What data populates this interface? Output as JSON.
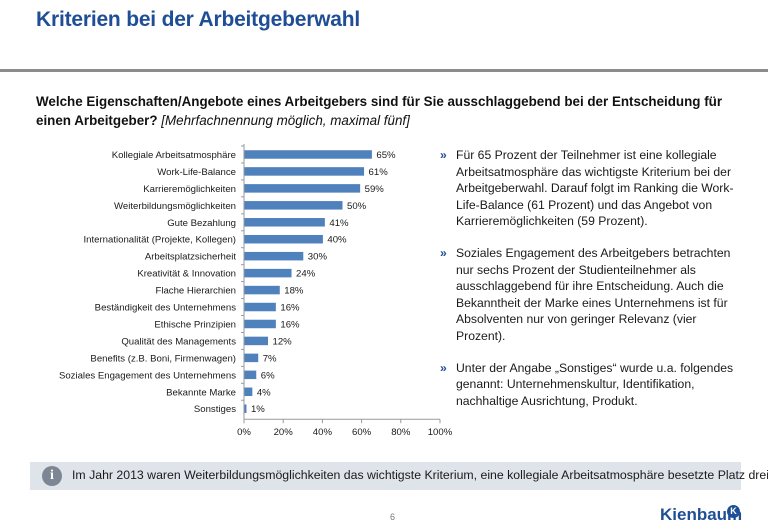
{
  "header": {
    "title": "Kriterien bei der Arbeitgeberwahl"
  },
  "question": {
    "text": "Welche Eigenschaften/Angebote eines Arbeitgebers sind für Sie ausschlaggebend bei der Entscheidung für einen Arbeitgeber?",
    "hint": "[Mehrfachnennung möglich, maximal fünf]"
  },
  "chart_data": {
    "type": "bar",
    "orientation": "horizontal",
    "categories": [
      "Kollegiale Arbeitsatmosphäre",
      "Work-Life-Balance",
      "Karrieremöglichkeiten",
      "Weiterbildungsmöglichkeiten",
      "Gute Bezahlung",
      "Internationalität (Projekte, Kollegen)",
      "Arbeitsplatzsicherheit",
      "Kreativität & Innovation",
      "Flache Hierarchien",
      "Beständigkeit des Unternehmens",
      "Ethische Prinzipien",
      "Qualität des Managements",
      "Benefits (z.B. Boni, Firmenwagen)",
      "Soziales Engagement des Unternehmens",
      "Bekannte Marke",
      "Sonstiges"
    ],
    "values": [
      65,
      61,
      59,
      50,
      41,
      40,
      30,
      24,
      18,
      16,
      16,
      12,
      7,
      6,
      4,
      1
    ],
    "value_labels": [
      "65%",
      "61%",
      "59%",
      "50%",
      "41%",
      "40%",
      "30%",
      "24%",
      "18%",
      "16%",
      "16%",
      "12%",
      "7%",
      "6%",
      "4%",
      "1%"
    ],
    "xlim": [
      0,
      100
    ],
    "xticks": [
      "0%",
      "20%",
      "40%",
      "60%",
      "80%",
      "100%"
    ],
    "bar_color": "#4f81bd",
    "grid": false
  },
  "bullets": [
    "Für 65 Prozent der Teilnehmer ist eine kollegiale Arbeitsatmosphäre das wichtigste Kriterium bei der Arbeitgeberwahl. Darauf folgt im Ranking die Work-Life-Balance (61 Prozent) und das Angebot von Karrieremöglichkeiten (59 Prozent).",
    "Soziales Engagement des Arbeitgebers betrachten nur sechs Prozent der Studienteilnehmer als ausschlaggebend für ihre Entscheidung. Auch die Bekanntheit der Marke eines Unternehmens ist für Absolventen nur von geringer Relevanz (vier Prozent).",
    "Unter der Angabe „Sonstiges“ wurde u.a. folgendes genannt: Unternehmenskultur, Identifikation, nachhaltige Ausrichtung, Produkt."
  ],
  "bullet_marker": "»",
  "info": {
    "icon": "info-icon",
    "icon_glyph": "i",
    "text": "Im Jahr 2013 waren Weiterbildungsmöglichkeiten das wichtigste Kriterium, eine kollegiale Arbeitsatmosphäre besetzte Platz drei."
  },
  "footer": {
    "page_number": "6",
    "logo_text": "Kienbaum",
    "logo_badge": "K"
  }
}
